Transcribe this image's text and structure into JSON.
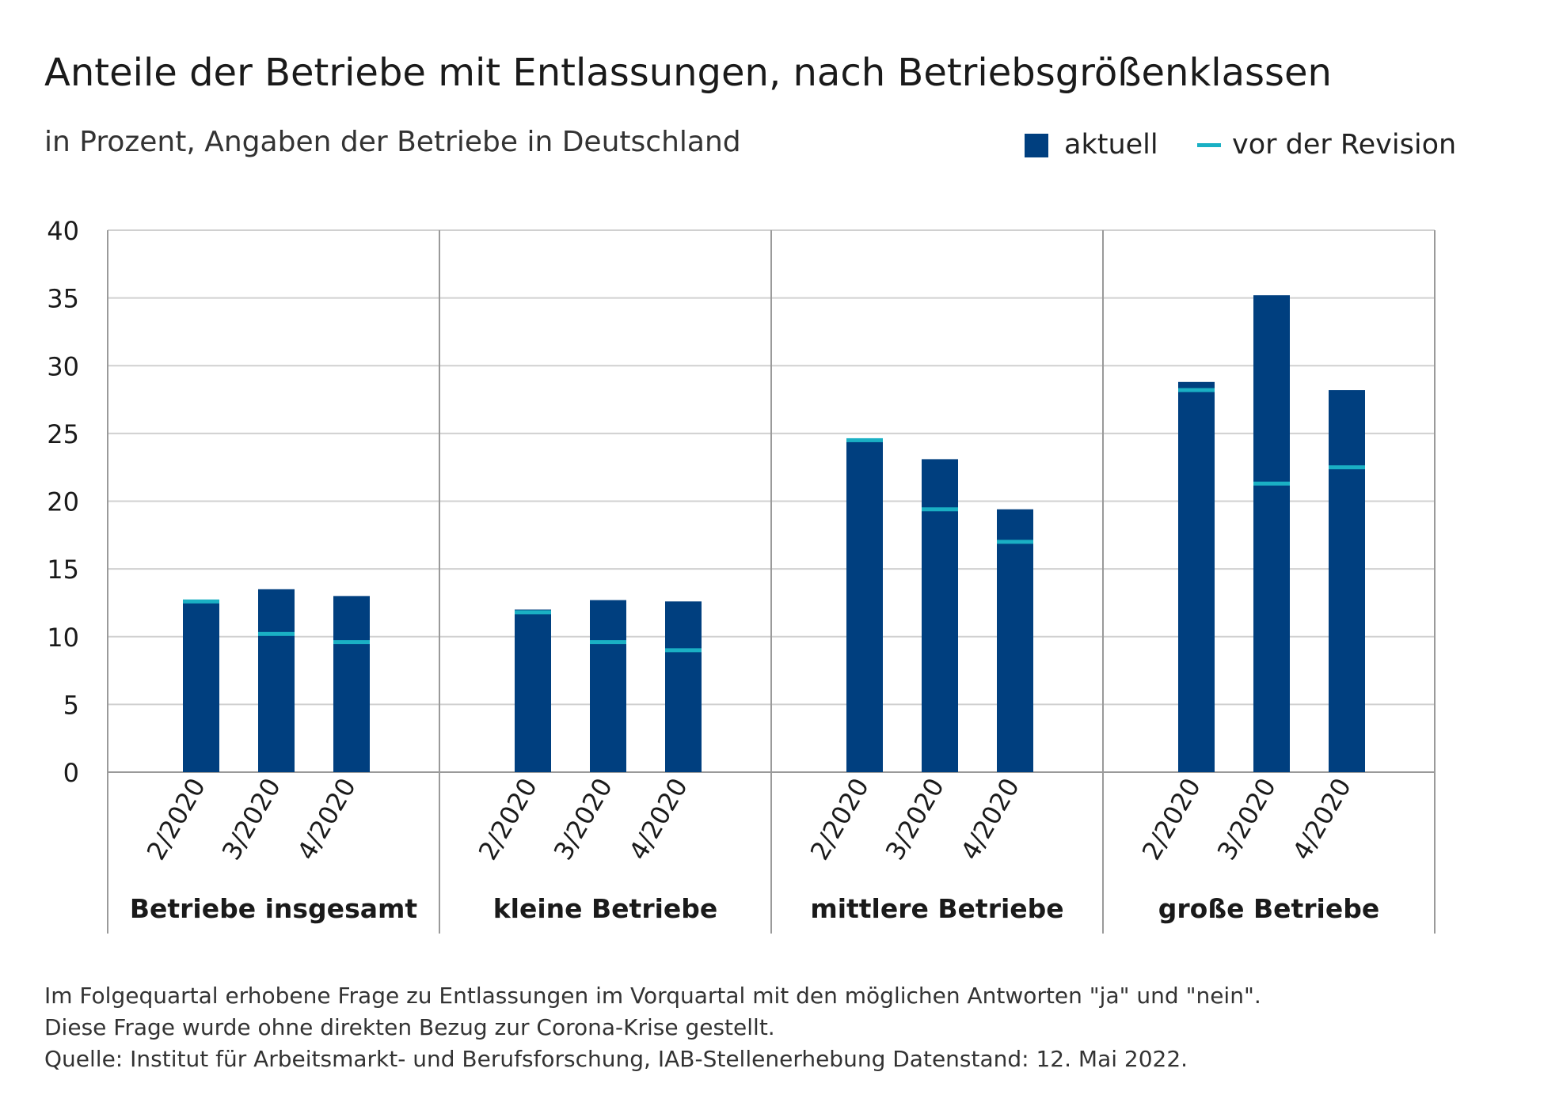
{
  "chart_data": {
    "type": "bar",
    "title": "Anteile der Betriebe mit Entlassungen, nach Betriebsgrößenklassen",
    "subtitle": "in Prozent, Angaben der Betriebe in Deutschland",
    "ylim": [
      0,
      40
    ],
    "yticks": [
      0,
      5,
      10,
      15,
      20,
      25,
      30,
      35,
      40
    ],
    "grid": true,
    "legend_position": "top-right",
    "legend": [
      {
        "label": "aktuell",
        "marker": "bar",
        "color": "#003f7f"
      },
      {
        "label": "vor der Revision",
        "marker": "line",
        "color": "#1ab0c4"
      }
    ],
    "groups": [
      {
        "name": "Betriebe insgesamt",
        "categories": [
          "2/2020",
          "3/2020",
          "4/2020"
        ],
        "aktuell": [
          12.5,
          13.5,
          13.0
        ],
        "vor_der_revision": [
          12.6,
          10.2,
          9.6
        ]
      },
      {
        "name": "kleine Betriebe",
        "categories": [
          "2/2020",
          "3/2020",
          "4/2020"
        ],
        "aktuell": [
          12.0,
          12.7,
          12.6
        ],
        "vor_der_revision": [
          11.8,
          9.6,
          9.0
        ]
      },
      {
        "name": "mittlere Betriebe",
        "categories": [
          "2/2020",
          "3/2020",
          "4/2020"
        ],
        "aktuell": [
          24.6,
          23.1,
          19.4
        ],
        "vor_der_revision": [
          24.5,
          19.4,
          17.0
        ]
      },
      {
        "name": "große Betriebe",
        "categories": [
          "2/2020",
          "3/2020",
          "4/2020"
        ],
        "aktuell": [
          28.8,
          35.2,
          28.2
        ],
        "vor_der_revision": [
          28.2,
          21.3,
          22.5
        ]
      }
    ]
  },
  "colors": {
    "bar": "#003f7f",
    "revision_marker": "#1ab0c4",
    "grid": "#d0d0d0",
    "frame": "#9a9a9a"
  },
  "footnotes": [
    "Im Folgequartal erhobene Frage zu Entlassungen im Vorquartal mit den möglichen Antworten \"ja\" und \"nein\".",
    "Diese Frage wurde ohne direkten Bezug zur Corona-Krise gestellt.",
    "Quelle: Institut für Arbeitsmarkt- und Berufsforschung, IAB-Stellenerhebung Datenstand: 12. Mai 2022."
  ]
}
